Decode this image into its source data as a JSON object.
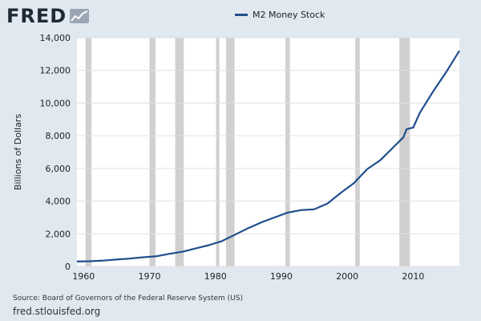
{
  "logo": {
    "text": "FRED",
    "icon": "chart-line-icon"
  },
  "chart_data": {
    "type": "line",
    "series": [
      {
        "name": "M2 Money Stock",
        "color": "#1f4e8d",
        "points": [
          [
            1959,
            300
          ],
          [
            1961,
            320
          ],
          [
            1963,
            360
          ],
          [
            1965,
            420
          ],
          [
            1967,
            480
          ],
          [
            1969,
            560
          ],
          [
            1971,
            620
          ],
          [
            1973,
            770
          ],
          [
            1975,
            900
          ],
          [
            1977,
            1100
          ],
          [
            1979,
            1300
          ],
          [
            1981,
            1550
          ],
          [
            1983,
            1950
          ],
          [
            1985,
            2350
          ],
          [
            1987,
            2700
          ],
          [
            1989,
            3000
          ],
          [
            1991,
            3300
          ],
          [
            1993,
            3450
          ],
          [
            1995,
            3500
          ],
          [
            1997,
            3850
          ],
          [
            1999,
            4500
          ],
          [
            2001,
            5100
          ],
          [
            2003,
            5950
          ],
          [
            2005,
            6500
          ],
          [
            2007,
            7300
          ],
          [
            2008.5,
            7900
          ],
          [
            2009,
            8400
          ],
          [
            2010,
            8500
          ],
          [
            2011,
            9400
          ],
          [
            2013,
            10700
          ],
          [
            2015,
            11900
          ],
          [
            2017,
            13200
          ]
        ]
      }
    ],
    "ylabel": "Billions of Dollars",
    "xlim": [
      1959,
      2017
    ],
    "ylim": [
      0,
      14000
    ],
    "xticks": [
      1960,
      1970,
      1980,
      1990,
      2000,
      2010
    ],
    "yticks": [
      0,
      2000,
      4000,
      6000,
      8000,
      10000,
      12000,
      14000
    ],
    "ytick_labels": [
      "0",
      "2,000",
      "4,000",
      "6,000",
      "8,000",
      "10,000",
      "12,000",
      "14,000"
    ],
    "recessions": [
      [
        1960.3,
        1961.2
      ],
      [
        1970.0,
        1970.9
      ],
      [
        1973.9,
        1975.2
      ],
      [
        1980.1,
        1980.6
      ],
      [
        1981.6,
        1982.9
      ],
      [
        1990.6,
        1991.3
      ],
      [
        2001.2,
        2001.9
      ],
      [
        2007.9,
        2009.5
      ]
    ],
    "grid": true,
    "legend": "top-center"
  },
  "footer": {
    "source": "Source: Board of Governors of the Federal Reserve System (US)",
    "site": "fred.stlouisfed.org"
  },
  "colors": {
    "background": "#e1e9f0",
    "plot_bg": "#ffffff",
    "grid": "#e0e0e0",
    "recession": "#d0d0d0",
    "line": "#1f4e8d"
  }
}
